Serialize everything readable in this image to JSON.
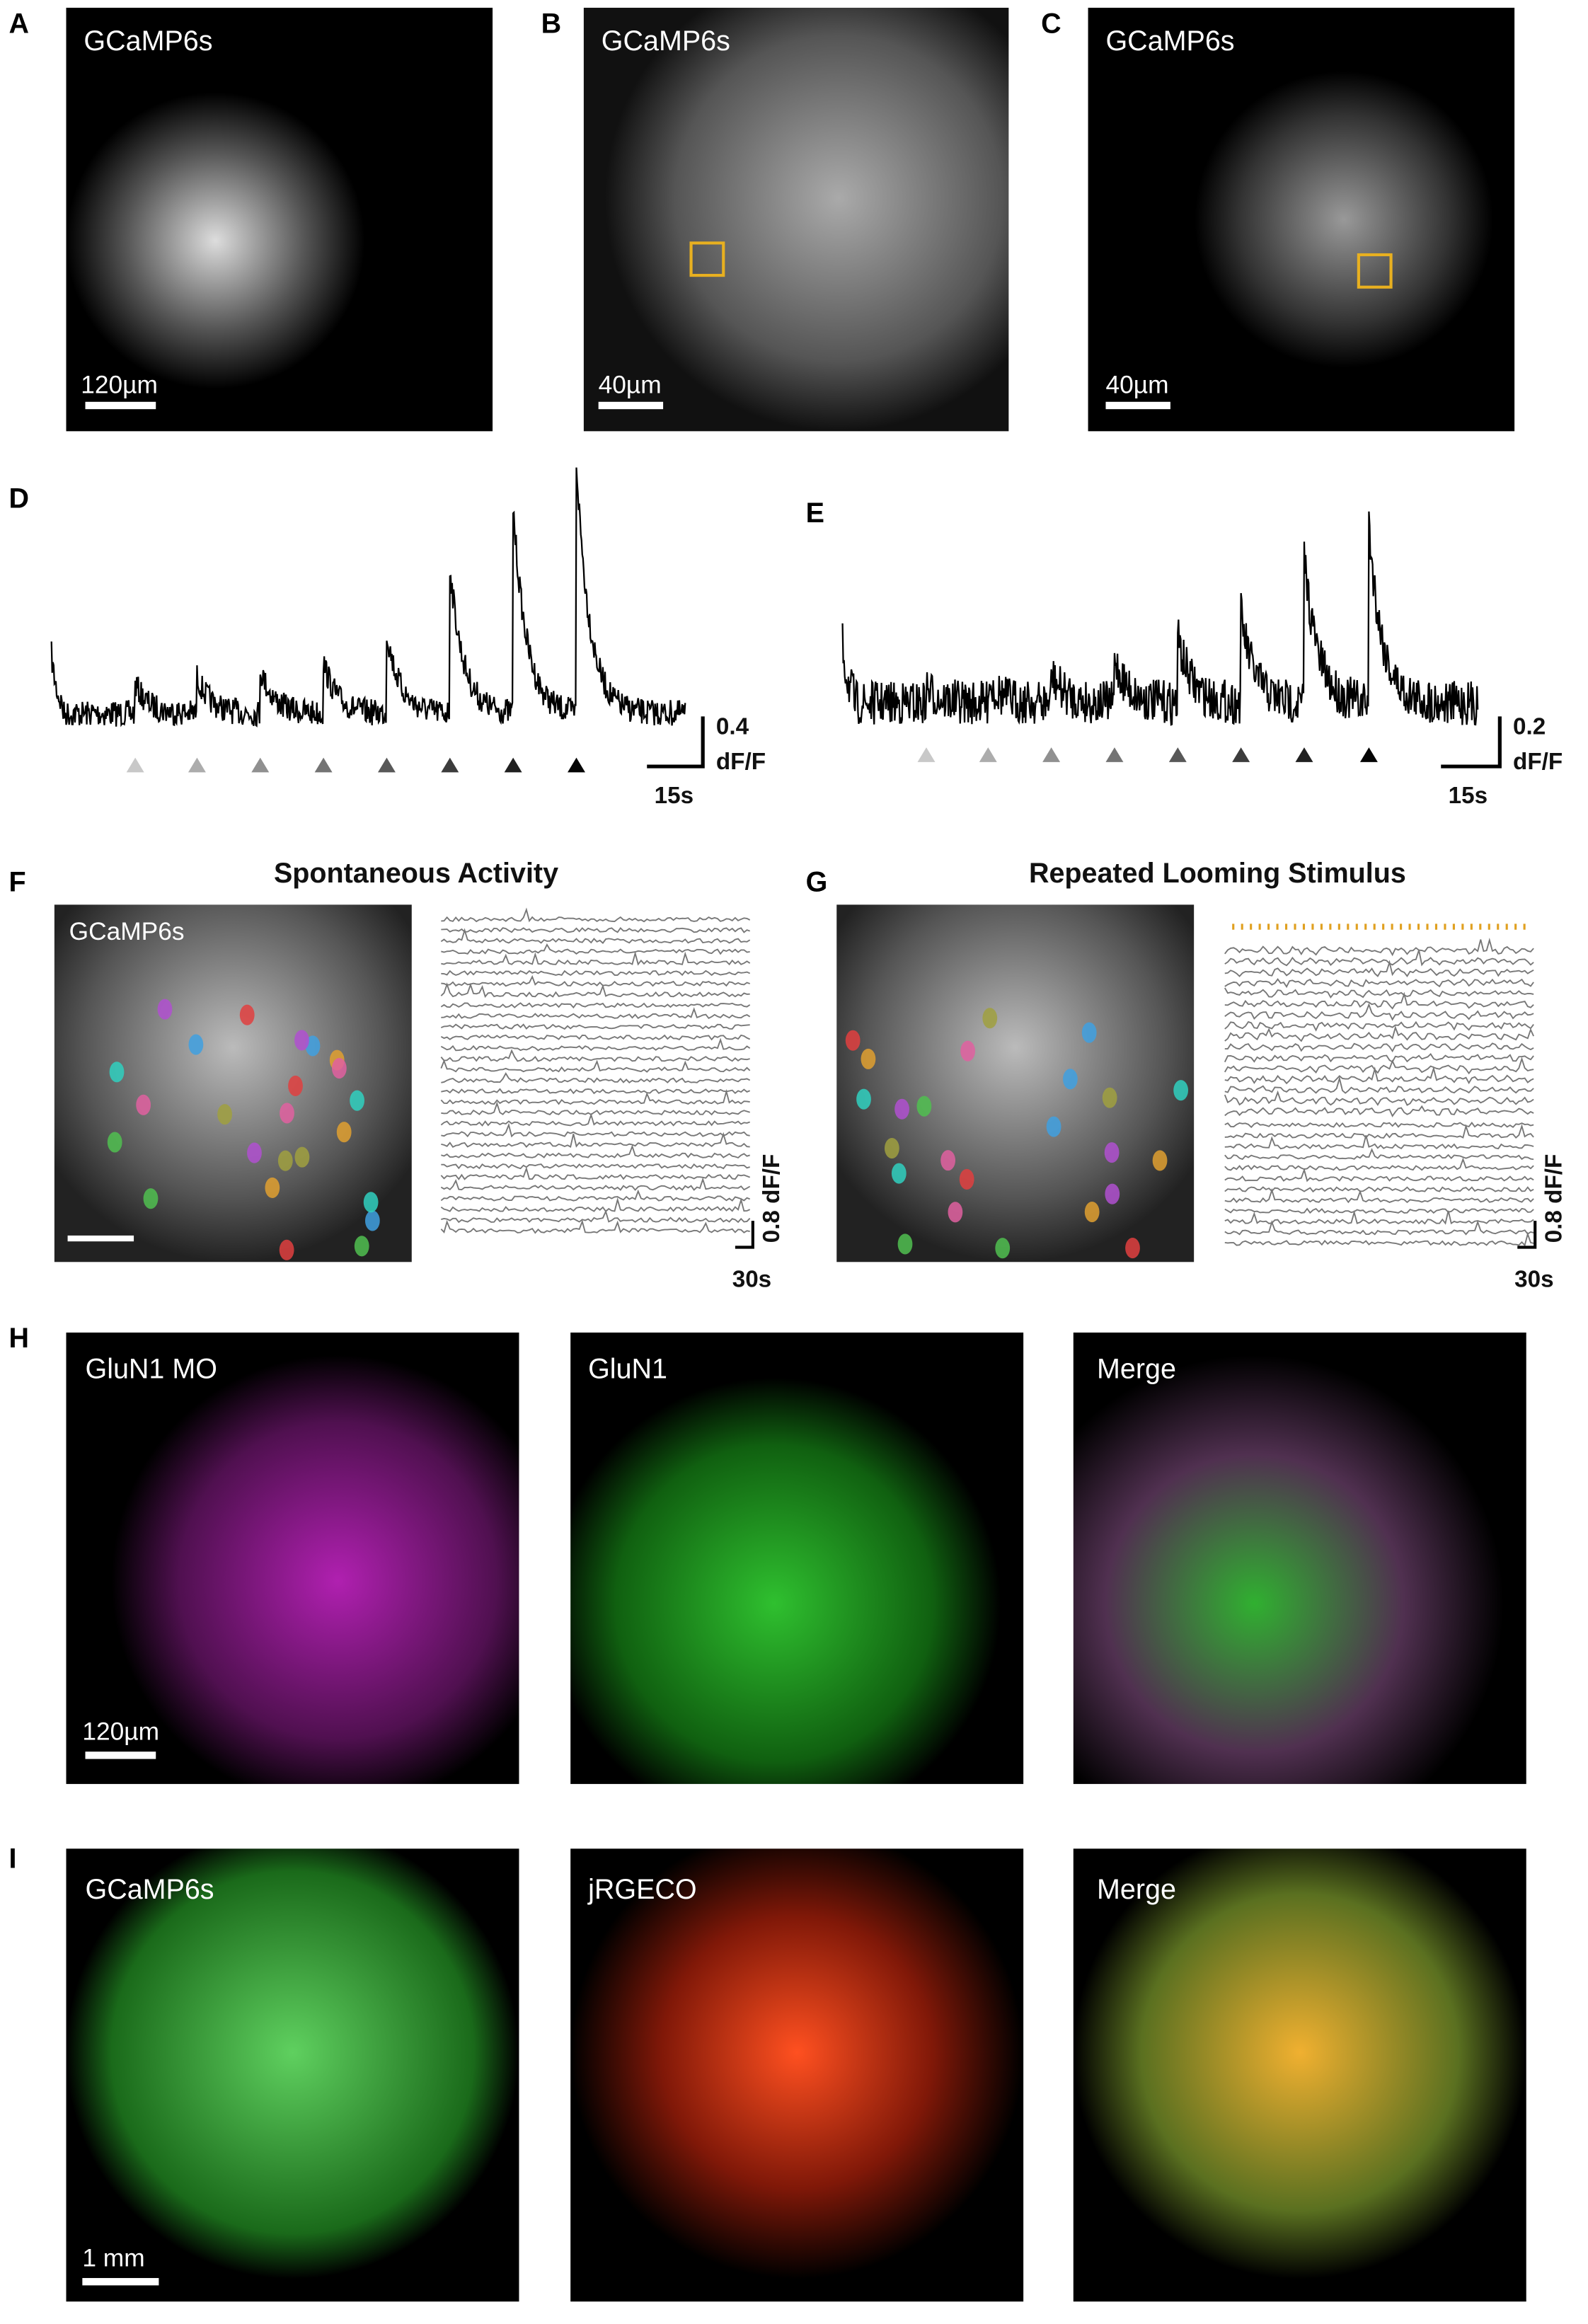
{
  "panels": [
    {
      "label": "A",
      "channel": "GCaMP6s",
      "scale_bar": "120µm"
    },
    {
      "label": "B",
      "channel": "GCaMP6s",
      "scale_bar": "40µm"
    },
    {
      "label": "C",
      "channel": "GCaMP6s",
      "scale_bar": "40µm"
    },
    {
      "label": "D",
      "scale_y": "0.4",
      "scale_y_unit": "dF/F",
      "scale_x": "15s"
    },
    {
      "label": "E",
      "scale_y": "0.2",
      "scale_y_unit": "dF/F",
      "scale_x": "15s"
    },
    {
      "label": "F",
      "title": "Spontaneous Activity",
      "channel": "GCaMP6s",
      "scale_y": "0.8 dF/F",
      "scale_x": "30s"
    },
    {
      "label": "G",
      "title": "Repeated Looming Stimulus",
      "scale_y": "0.8 dF/F",
      "scale_x": "30s"
    },
    {
      "label": "H",
      "images": [
        "GluN1 MO",
        "GluN1",
        "Merge"
      ],
      "scale_bar": "120µm"
    },
    {
      "label": "I",
      "images": [
        "GCaMP6s",
        "jRGECO",
        "Merge"
      ],
      "scale_bar": "1 mm"
    }
  ]
}
